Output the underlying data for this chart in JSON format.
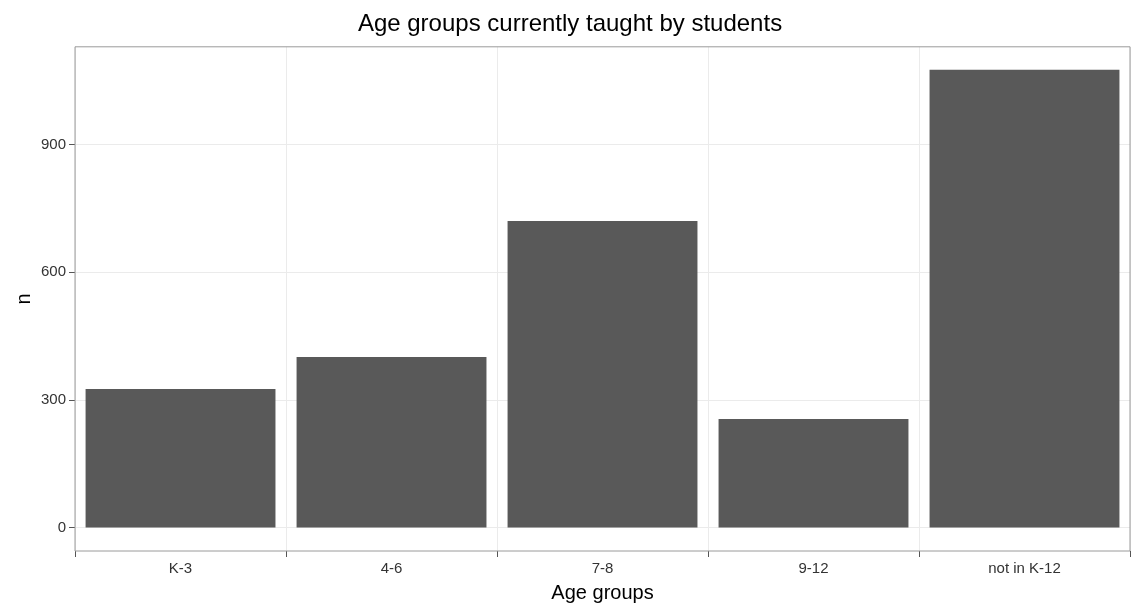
{
  "chart_data": {
    "type": "bar",
    "title": "Age groups currently taught by students",
    "xlabel": "Age groups",
    "ylabel": "n",
    "categories": [
      "K-3",
      "4-6",
      "7-8",
      "9-12",
      "not in K-12"
    ],
    "values": [
      326,
      401,
      720,
      256,
      1075
    ],
    "color": "#595959",
    "ylim": [
      -54,
      1129
    ],
    "yticks": [
      0,
      300,
      600,
      900
    ],
    "grid": true
  }
}
